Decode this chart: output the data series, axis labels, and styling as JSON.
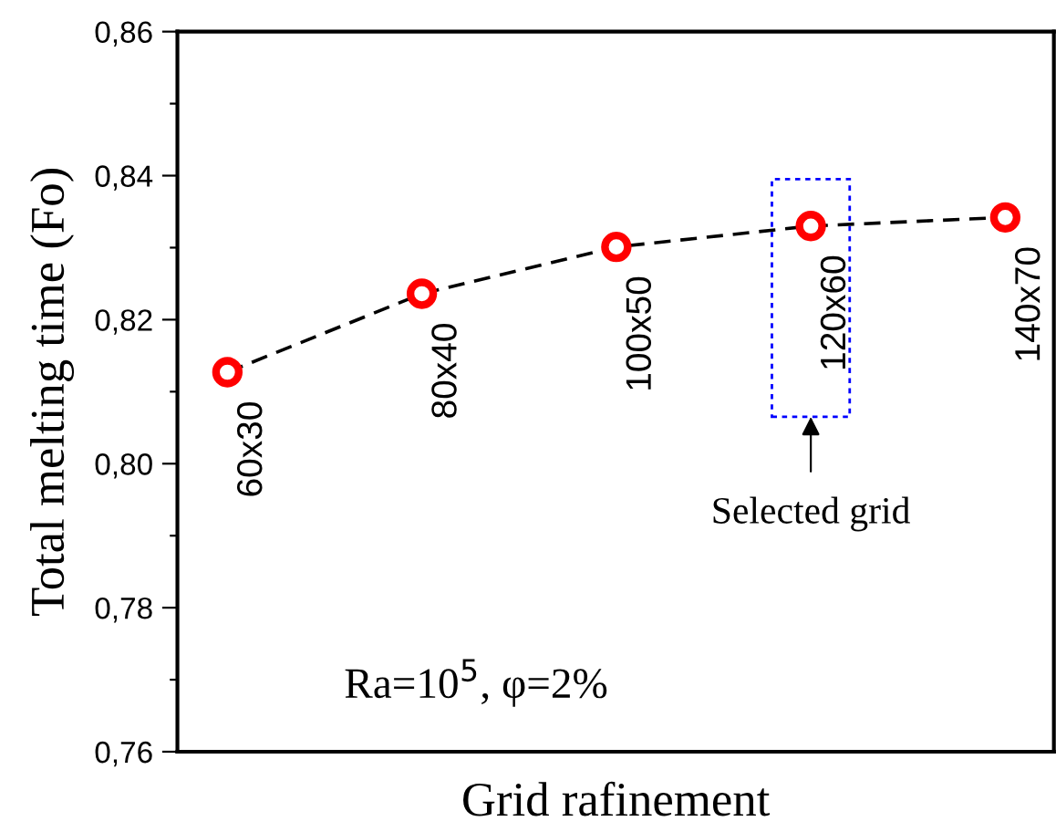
{
  "chart_data": {
    "type": "line",
    "xlabel": "Grid rafinement",
    "ylabel": "Total melting time (Fo)",
    "categories": [
      "60x30",
      "80x40",
      "100x50",
      "120x60",
      "140x70"
    ],
    "series": [
      {
        "color": "#ff0000",
        "values": [
          0.8127,
          0.8236,
          0.8301,
          0.833,
          0.8342
        ]
      }
    ],
    "marker": "circle",
    "line_style": "dashed",
    "ylim": [
      0.76,
      0.86
    ],
    "yticks": [
      {
        "value": 0.76,
        "label": "0,76"
      },
      {
        "value": 0.77,
        "label": null
      },
      {
        "value": 0.78,
        "label": "0,78"
      },
      {
        "value": 0.79,
        "label": null
      },
      {
        "value": 0.8,
        "label": "0,80"
      },
      {
        "value": 0.81,
        "label": null
      },
      {
        "value": 0.82,
        "label": "0,82"
      },
      {
        "value": 0.83,
        "label": null
      },
      {
        "value": 0.84,
        "label": "0,84"
      },
      {
        "value": 0.85,
        "label": null
      },
      {
        "value": 0.86,
        "label": "0,86"
      }
    ],
    "tick_labels": "y",
    "grid": false,
    "legend": false,
    "annotations": [
      "Selected grid",
      "Ra=10$^{5}$, φ=2%"
    ]
  }
}
